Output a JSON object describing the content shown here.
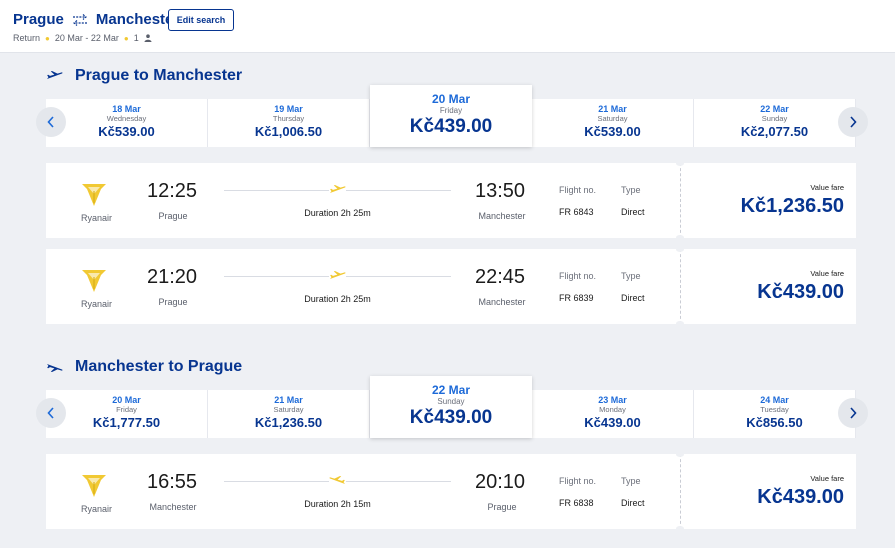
{
  "header": {
    "origin": "Prague",
    "destination": "Manchester",
    "edit_label": "Edit search",
    "trip_type": "Return",
    "dates": "20 Mar - 22 Mar",
    "passengers": "1",
    "accent": "#073590",
    "icons": [
      "swap-icon",
      "person-icon"
    ]
  },
  "outbound": {
    "title": "Prague to Manchester",
    "icon": "plane-takeoff-icon",
    "dates": [
      {
        "date": "18 Mar",
        "day": "Wednesday",
        "price": "Kč539.00"
      },
      {
        "date": "19 Mar",
        "day": "Thursday",
        "price": "Kč1,006.50"
      },
      {
        "date": "20 Mar",
        "day": "Friday",
        "price": "Kč439.00",
        "selected": true
      },
      {
        "date": "21 Mar",
        "day": "Saturday",
        "price": "Kč539.00"
      },
      {
        "date": "22 Mar",
        "day": "Sunday",
        "price": "Kč2,077.50"
      }
    ],
    "flights": [
      {
        "airline": "Ryanair",
        "dep_time": "12:25",
        "dep_city": "Prague",
        "duration": "Duration 2h 25m",
        "arr_time": "13:50",
        "arr_city": "Manchester",
        "flight_no_label": "Flight no.",
        "flight_no": "FR 6843",
        "type_label": "Type",
        "type": "Direct",
        "fare_label": "Value fare",
        "price": "Kč1,236.50"
      },
      {
        "airline": "Ryanair",
        "dep_time": "21:20",
        "dep_city": "Prague",
        "duration": "Duration 2h 25m",
        "arr_time": "22:45",
        "arr_city": "Manchester",
        "flight_no_label": "Flight no.",
        "flight_no": "FR 6839",
        "type_label": "Type",
        "type": "Direct",
        "fare_label": "Value fare",
        "price": "Kč439.00"
      }
    ]
  },
  "inbound": {
    "title": "Manchester to Prague",
    "icon": "plane-landing-icon",
    "dates": [
      {
        "date": "20 Mar",
        "day": "Friday",
        "price": "Kč1,777.50"
      },
      {
        "date": "21 Mar",
        "day": "Saturday",
        "price": "Kč1,236.50"
      },
      {
        "date": "22 Mar",
        "day": "Sunday",
        "price": "Kč439.00",
        "selected": true
      },
      {
        "date": "23 Mar",
        "day": "Monday",
        "price": "Kč439.00"
      },
      {
        "date": "24 Mar",
        "day": "Tuesday",
        "price": "Kč856.50"
      }
    ],
    "flights": [
      {
        "airline": "Ryanair",
        "dep_time": "16:55",
        "dep_city": "Manchester",
        "duration": "Duration 2h 15m",
        "arr_time": "20:10",
        "arr_city": "Prague",
        "flight_no_label": "Flight no.",
        "flight_no": "FR 6838",
        "type_label": "Type",
        "type": "Direct",
        "fare_label": "Value fare",
        "price": "Kč439.00"
      }
    ]
  },
  "colors": {
    "brand_blue": "#073590",
    "date_blue": "#1d6ad8",
    "ryanair_yellow": "#f1c933"
  }
}
